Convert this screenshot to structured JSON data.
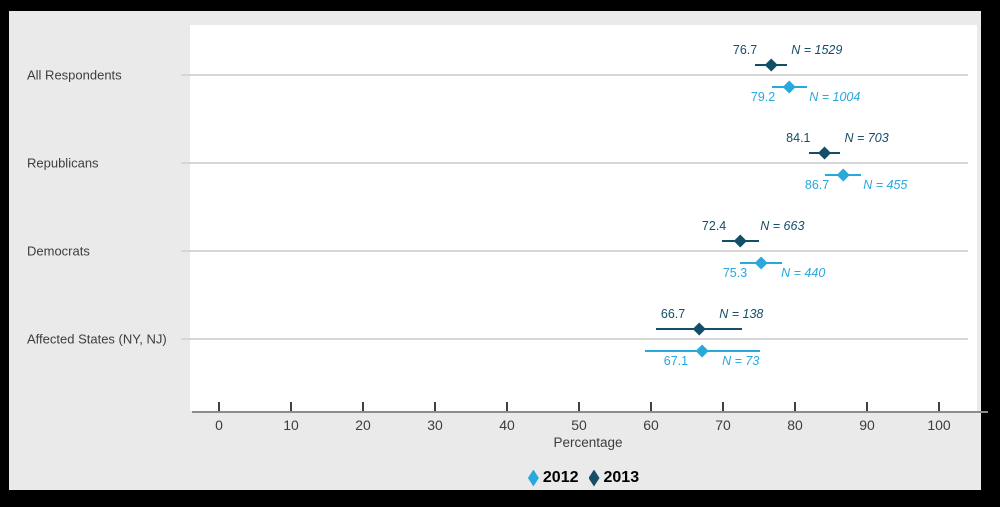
{
  "figure": {
    "background_color": "#eaeaea",
    "border_color": "#000000",
    "plot_background_color": "#ffffff"
  },
  "chart_data": {
    "type": "scatter",
    "subtype": "dot-plot-with-confidence-intervals",
    "title": "",
    "xlabel": "Percentage",
    "ylabel": "",
    "xlim": [
      0,
      100
    ],
    "xticks": [
      0,
      10,
      20,
      30,
      40,
      50,
      60,
      70,
      80,
      90,
      100
    ],
    "grid": "horizontal-category-lines",
    "legend_position": "bottom-center",
    "legend": [
      "2012",
      "2013"
    ],
    "n_label_prefix": "N = ",
    "categories": [
      "All Respondents",
      "Republicans",
      "Democrats",
      "Affected States (NY, NJ)"
    ],
    "series": [
      {
        "name": "2012",
        "color": "#29a8db",
        "values": [
          79.2,
          86.7,
          75.3,
          67.1
        ],
        "n": [
          1004,
          455,
          440,
          73
        ],
        "ci_low": [
          76.8,
          84.2,
          72.4,
          59.1
        ],
        "ci_high": [
          81.6,
          89.2,
          78.2,
          75.1
        ]
      },
      {
        "name": "2013",
        "color": "#134f68",
        "values": [
          76.7,
          84.1,
          72.4,
          66.7
        ],
        "n": [
          1529,
          703,
          663,
          138
        ],
        "ci_low": [
          74.5,
          81.9,
          69.8,
          60.7
        ],
        "ci_high": [
          78.9,
          86.3,
          75.0,
          72.7
        ]
      }
    ]
  }
}
